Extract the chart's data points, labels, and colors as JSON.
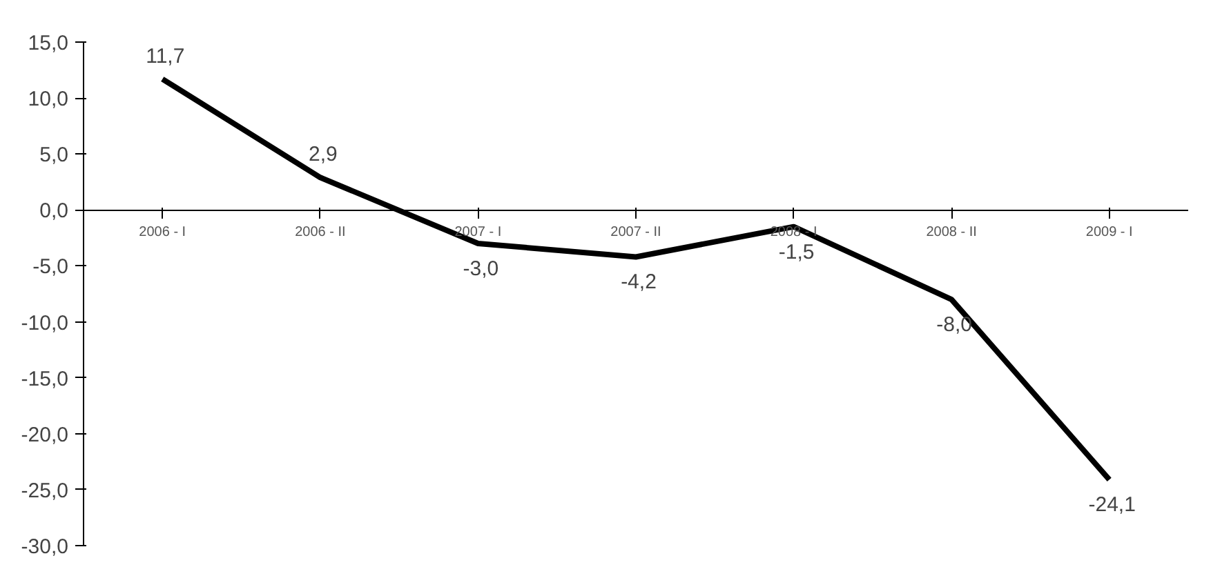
{
  "chart_data": {
    "type": "line",
    "categories": [
      "2006 - I",
      "2006 - II",
      "2007 - I",
      "2007 - II",
      "2008 - I",
      "2008 - II",
      "2009 - I"
    ],
    "series": [
      {
        "color": "#000000",
        "values": [
          11.7,
          2.9,
          -3.0,
          -4.2,
          -1.5,
          -8.0,
          -24.1
        ],
        "value_labels": [
          "11,7",
          "2,9",
          "-3,0",
          "-4,2",
          "-1,5",
          "-8,0",
          "-24,1"
        ]
      }
    ],
    "ylim": [
      -30,
      15
    ],
    "yticks": [
      {
        "value": 15,
        "label": "15,0"
      },
      {
        "value": 10,
        "label": "10,0"
      },
      {
        "value": 5,
        "label": "5,0"
      },
      {
        "value": 0,
        "label": "0,0"
      },
      {
        "value": -5,
        "label": "-5,0"
      },
      {
        "value": -10,
        "label": "-10,0"
      },
      {
        "value": -15,
        "label": "-15,0"
      },
      {
        "value": -20,
        "label": "-20,0"
      },
      {
        "value": -25,
        "label": "-25,0"
      },
      {
        "value": -30,
        "label": "-30,0"
      }
    ],
    "grid": false,
    "marker": "none",
    "line_style": "solid"
  }
}
